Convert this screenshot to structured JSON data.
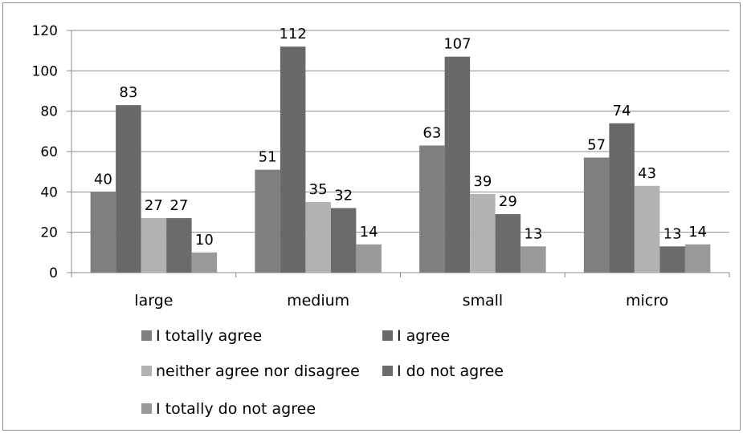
{
  "chart_data": {
    "type": "bar",
    "categories": [
      "large",
      "medium",
      "small",
      "micro"
    ],
    "series": [
      {
        "name": "I totally agree",
        "values": [
          40,
          51,
          63,
          57
        ],
        "color": "#7f7f7f"
      },
      {
        "name": "I agree",
        "values": [
          83,
          112,
          107,
          74
        ],
        "color": "#696969"
      },
      {
        "name": "neither agree nor disagree",
        "values": [
          27,
          35,
          39,
          43
        ],
        "color": "#b2b2b2"
      },
      {
        "name": "I do not agree",
        "values": [
          27,
          32,
          29,
          13
        ],
        "color": "#6b6b6b"
      },
      {
        "name": "I totally do not agree",
        "values": [
          10,
          14,
          13,
          14
        ],
        "color": "#999999"
      }
    ],
    "ylim": [
      0,
      120
    ],
    "yticks": [
      0,
      20,
      40,
      60,
      80,
      100,
      120
    ],
    "grid": true,
    "legend": "bottom",
    "title": "",
    "xlabel": "",
    "ylabel": ""
  }
}
